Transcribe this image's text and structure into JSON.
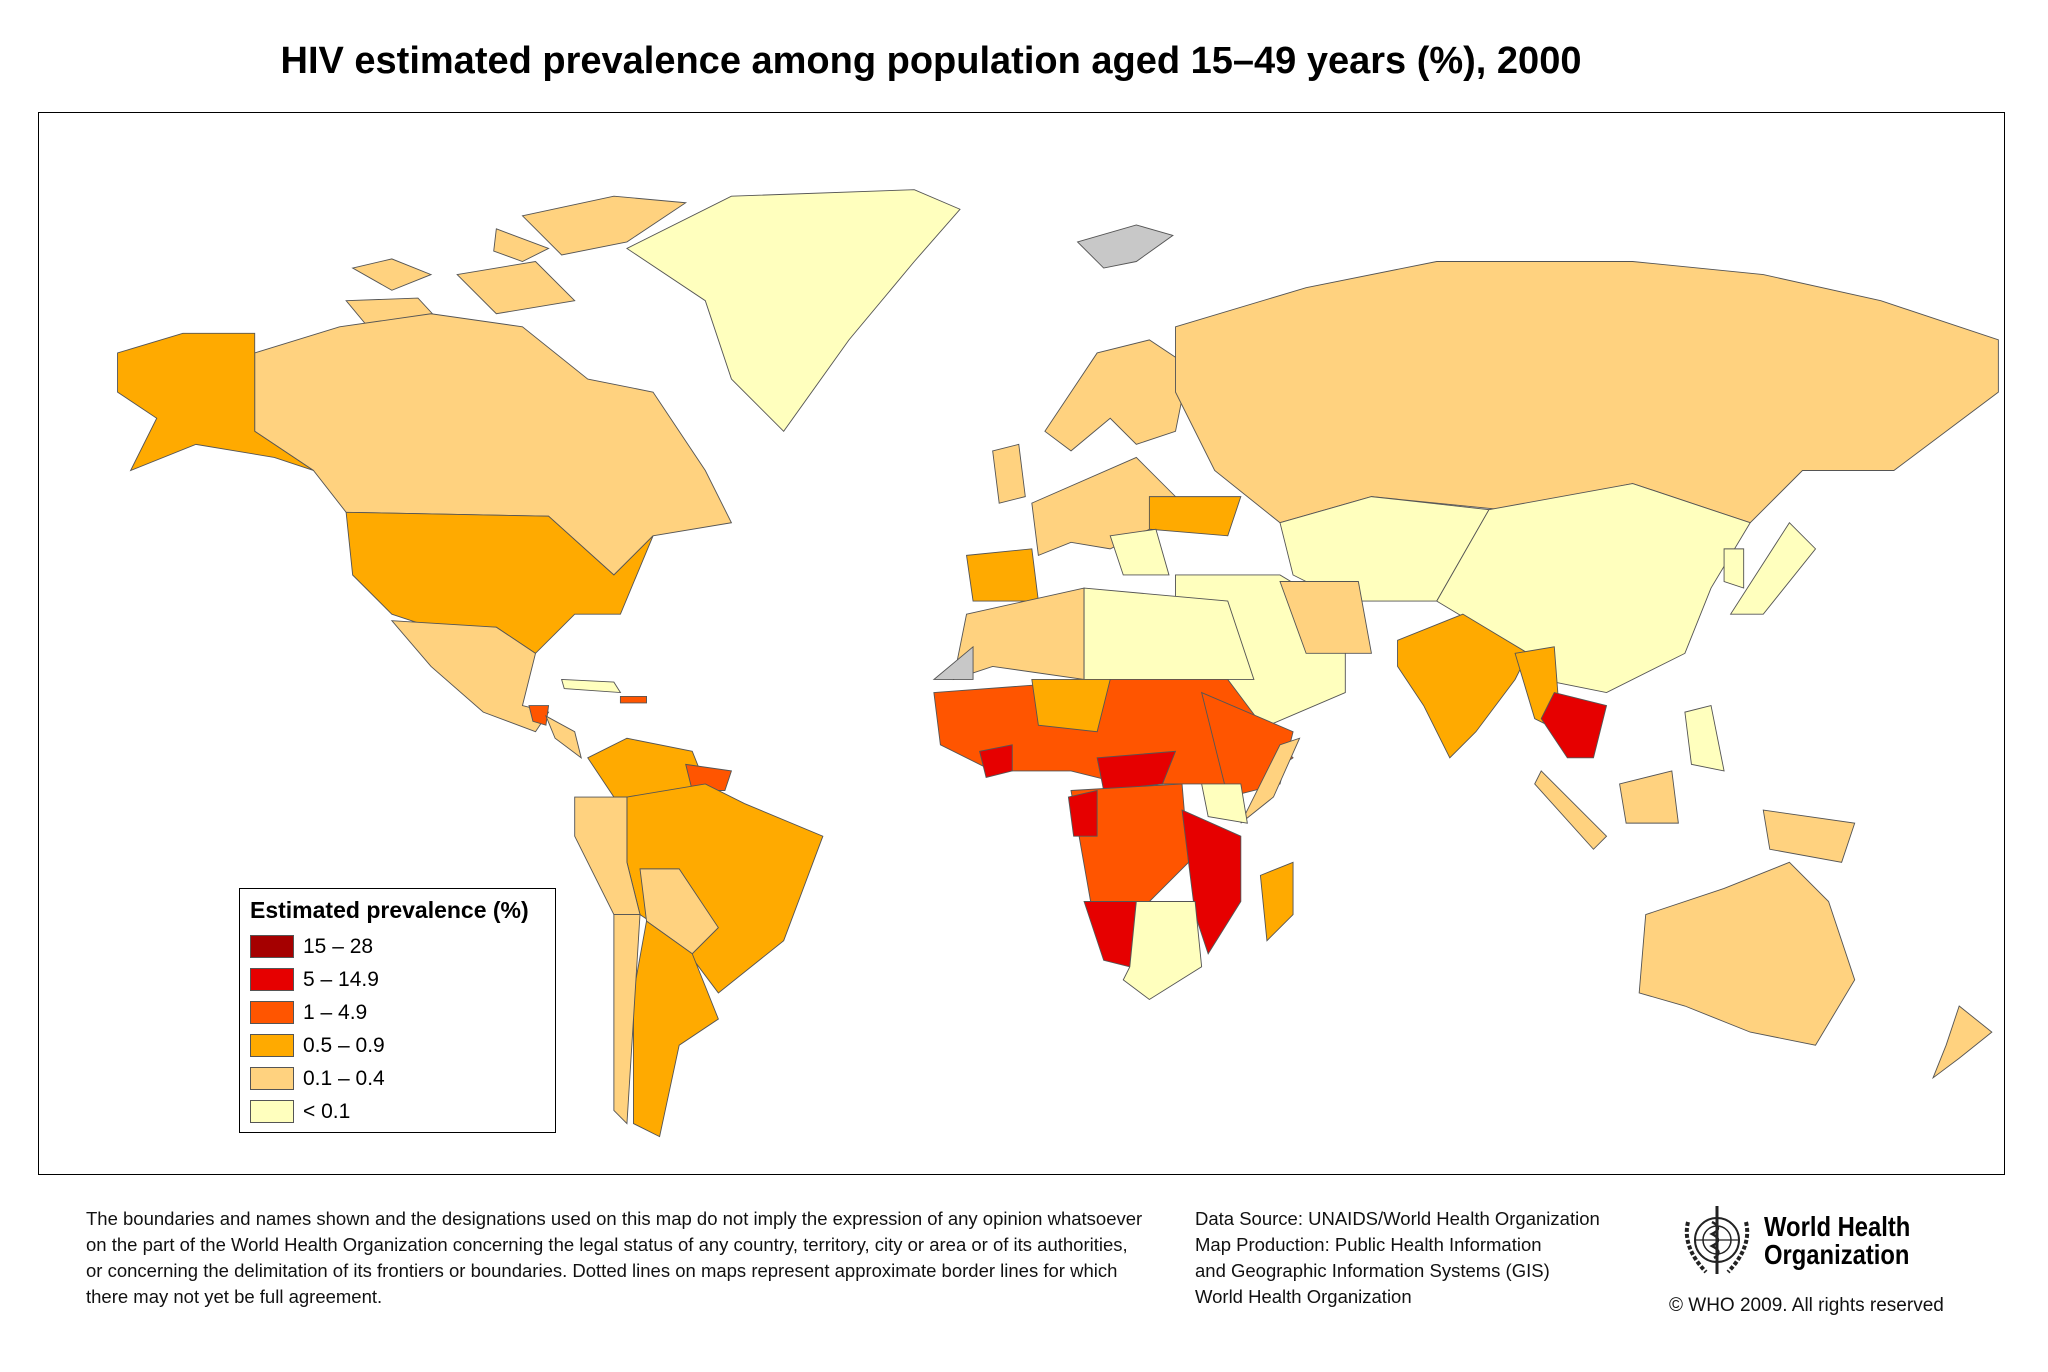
{
  "title": "HIV estimated prevalence among population aged 15–49 years (%), 2000",
  "legend": {
    "title": "Estimated prevalence (%)",
    "classes": [
      {
        "label": "15 – 28",
        "color": "#A50000"
      },
      {
        "label": "5 – 14.9",
        "color": "#E60000"
      },
      {
        "label": "1 – 4.9",
        "color": "#FF5500"
      },
      {
        "label": "0.5 – 0.9",
        "color": "#FFAA00"
      },
      {
        "label": "0.1 – 0.4",
        "color": "#FFD27F"
      },
      {
        "label": "< 0.1",
        "color": "#FFFFBE"
      }
    ],
    "no_data_color": "#C8C8C8"
  },
  "footer": {
    "disclaimer": [
      "The boundaries and names shown and the designations used on this map do not imply the expression of any opinion whatsoever",
      "on the part of the World Health Organization concerning the legal status of any country, territory, city or area or of its authorities,",
      "or concerning the delimitation of its frontiers or boundaries.  Dotted lines on maps represent approximate border lines for which",
      "there may not yet be full agreement."
    ],
    "source": [
      "Data Source: UNAIDS/World Health Organization",
      "Map Production: Public Health Information",
      "and Geographic Information Systems (GIS)",
      "World Health Organization"
    ],
    "logo_text": [
      "World Health",
      "Organization"
    ],
    "copyright": "© WHO 2009. All rights reserved"
  }
}
